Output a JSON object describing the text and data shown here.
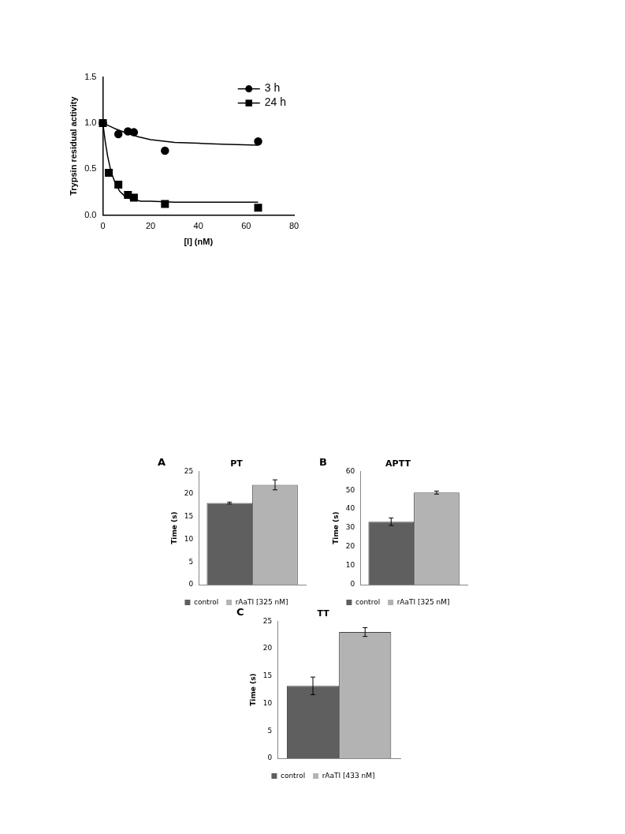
{
  "chart_data": [
    {
      "type": "scatter",
      "xlabel": "[I] (nM)",
      "ylabel": "Trypsin residual activity",
      "xlim": [
        0,
        80
      ],
      "xticks": [
        0,
        20,
        40,
        60,
        80
      ],
      "ylim": [
        0,
        1.5
      ],
      "yticks": [
        {
          "value": 0,
          "label": "0.0"
        },
        {
          "value": 0.5,
          "label": "0.5"
        },
        {
          "value": 1,
          "label": "1.0"
        },
        {
          "value": 1.5,
          "label": "1.5"
        }
      ],
      "grid": false,
      "legend": "top right",
      "series": [
        {
          "name": "3 h",
          "color": "#000000",
          "marker": "circle",
          "x": [
            0,
            6.5,
            10.5,
            13,
            26,
            65
          ],
          "values": [
            1.0,
            0.88,
            0.91,
            0.9,
            0.7,
            0.8
          ]
        },
        {
          "name": "24 h",
          "color": "#000000",
          "marker": "square",
          "x": [
            0,
            2.5,
            6.5,
            10.5,
            13,
            26,
            65
          ],
          "values": [
            1.0,
            0.46,
            0.33,
            0.22,
            0.19,
            0.12,
            0.08
          ]
        },
        {
          "type": "line",
          "color": "#000000",
          "marker": "none",
          "x": [
            0,
            5,
            10,
            15,
            20,
            30,
            40,
            50,
            65
          ],
          "values": [
            1.0,
            0.94,
            0.89,
            0.85,
            0.82,
            0.79,
            0.78,
            0.77,
            0.76
          ]
        },
        {
          "type": "line",
          "color": "#000000",
          "marker": "none",
          "x": [
            0,
            1,
            2,
            3,
            4,
            5,
            7,
            9,
            12,
            16,
            20,
            30,
            65
          ],
          "values": [
            1.0,
            0.8,
            0.64,
            0.52,
            0.43,
            0.36,
            0.26,
            0.21,
            0.17,
            0.15,
            0.15,
            0.14,
            0.14
          ]
        }
      ]
    },
    {
      "type": "bar",
      "title": "PT",
      "ylabel": "Time (s)",
      "annotations": [
        "A"
      ],
      "categories": [
        null
      ],
      "ylim": [
        0,
        25
      ],
      "yticks": [
        0,
        5,
        10,
        15,
        20,
        25
      ],
      "grid": false,
      "legend": "bottom",
      "series": [
        {
          "name": "control",
          "color": "#5f5f5f",
          "values": [
            18
          ],
          "errors": [
            0.2
          ]
        },
        {
          "name": "rAaTI [325 nM]",
          "color": "#b3b3b3",
          "values": [
            22
          ],
          "errors": [
            1.1
          ]
        }
      ]
    },
    {
      "type": "bar",
      "title": "APTT",
      "ylabel": "Time (s)",
      "annotations": [
        "B"
      ],
      "categories": [
        null
      ],
      "ylim": [
        0,
        60
      ],
      "yticks": [
        0,
        10,
        20,
        30,
        40,
        50,
        60
      ],
      "grid": false,
      "legend": "bottom",
      "series": [
        {
          "name": "control",
          "color": "#5f5f5f",
          "values": [
            33.3
          ],
          "errors": [
            2
          ]
        },
        {
          "name": "rAaTI [325 nM]",
          "color": "#b3b3b3",
          "values": [
            48.7
          ],
          "errors": [
            0.8
          ]
        }
      ]
    },
    {
      "type": "bar",
      "title": "TT",
      "ylabel": "Time (s)",
      "annotations": [
        "C"
      ],
      "categories": [
        null
      ],
      "ylim": [
        0,
        25
      ],
      "yticks": [
        0,
        5,
        10,
        15,
        20,
        25
      ],
      "grid": false,
      "legend": "bottom",
      "series": [
        {
          "name": "control",
          "color": "#5f5f5f",
          "values": [
            13.2
          ],
          "errors": [
            1.6
          ]
        },
        {
          "name": "rAaTI [433 nM]",
          "color": "#b3b3b3",
          "values": [
            23
          ],
          "errors": [
            0.8
          ]
        }
      ]
    }
  ]
}
